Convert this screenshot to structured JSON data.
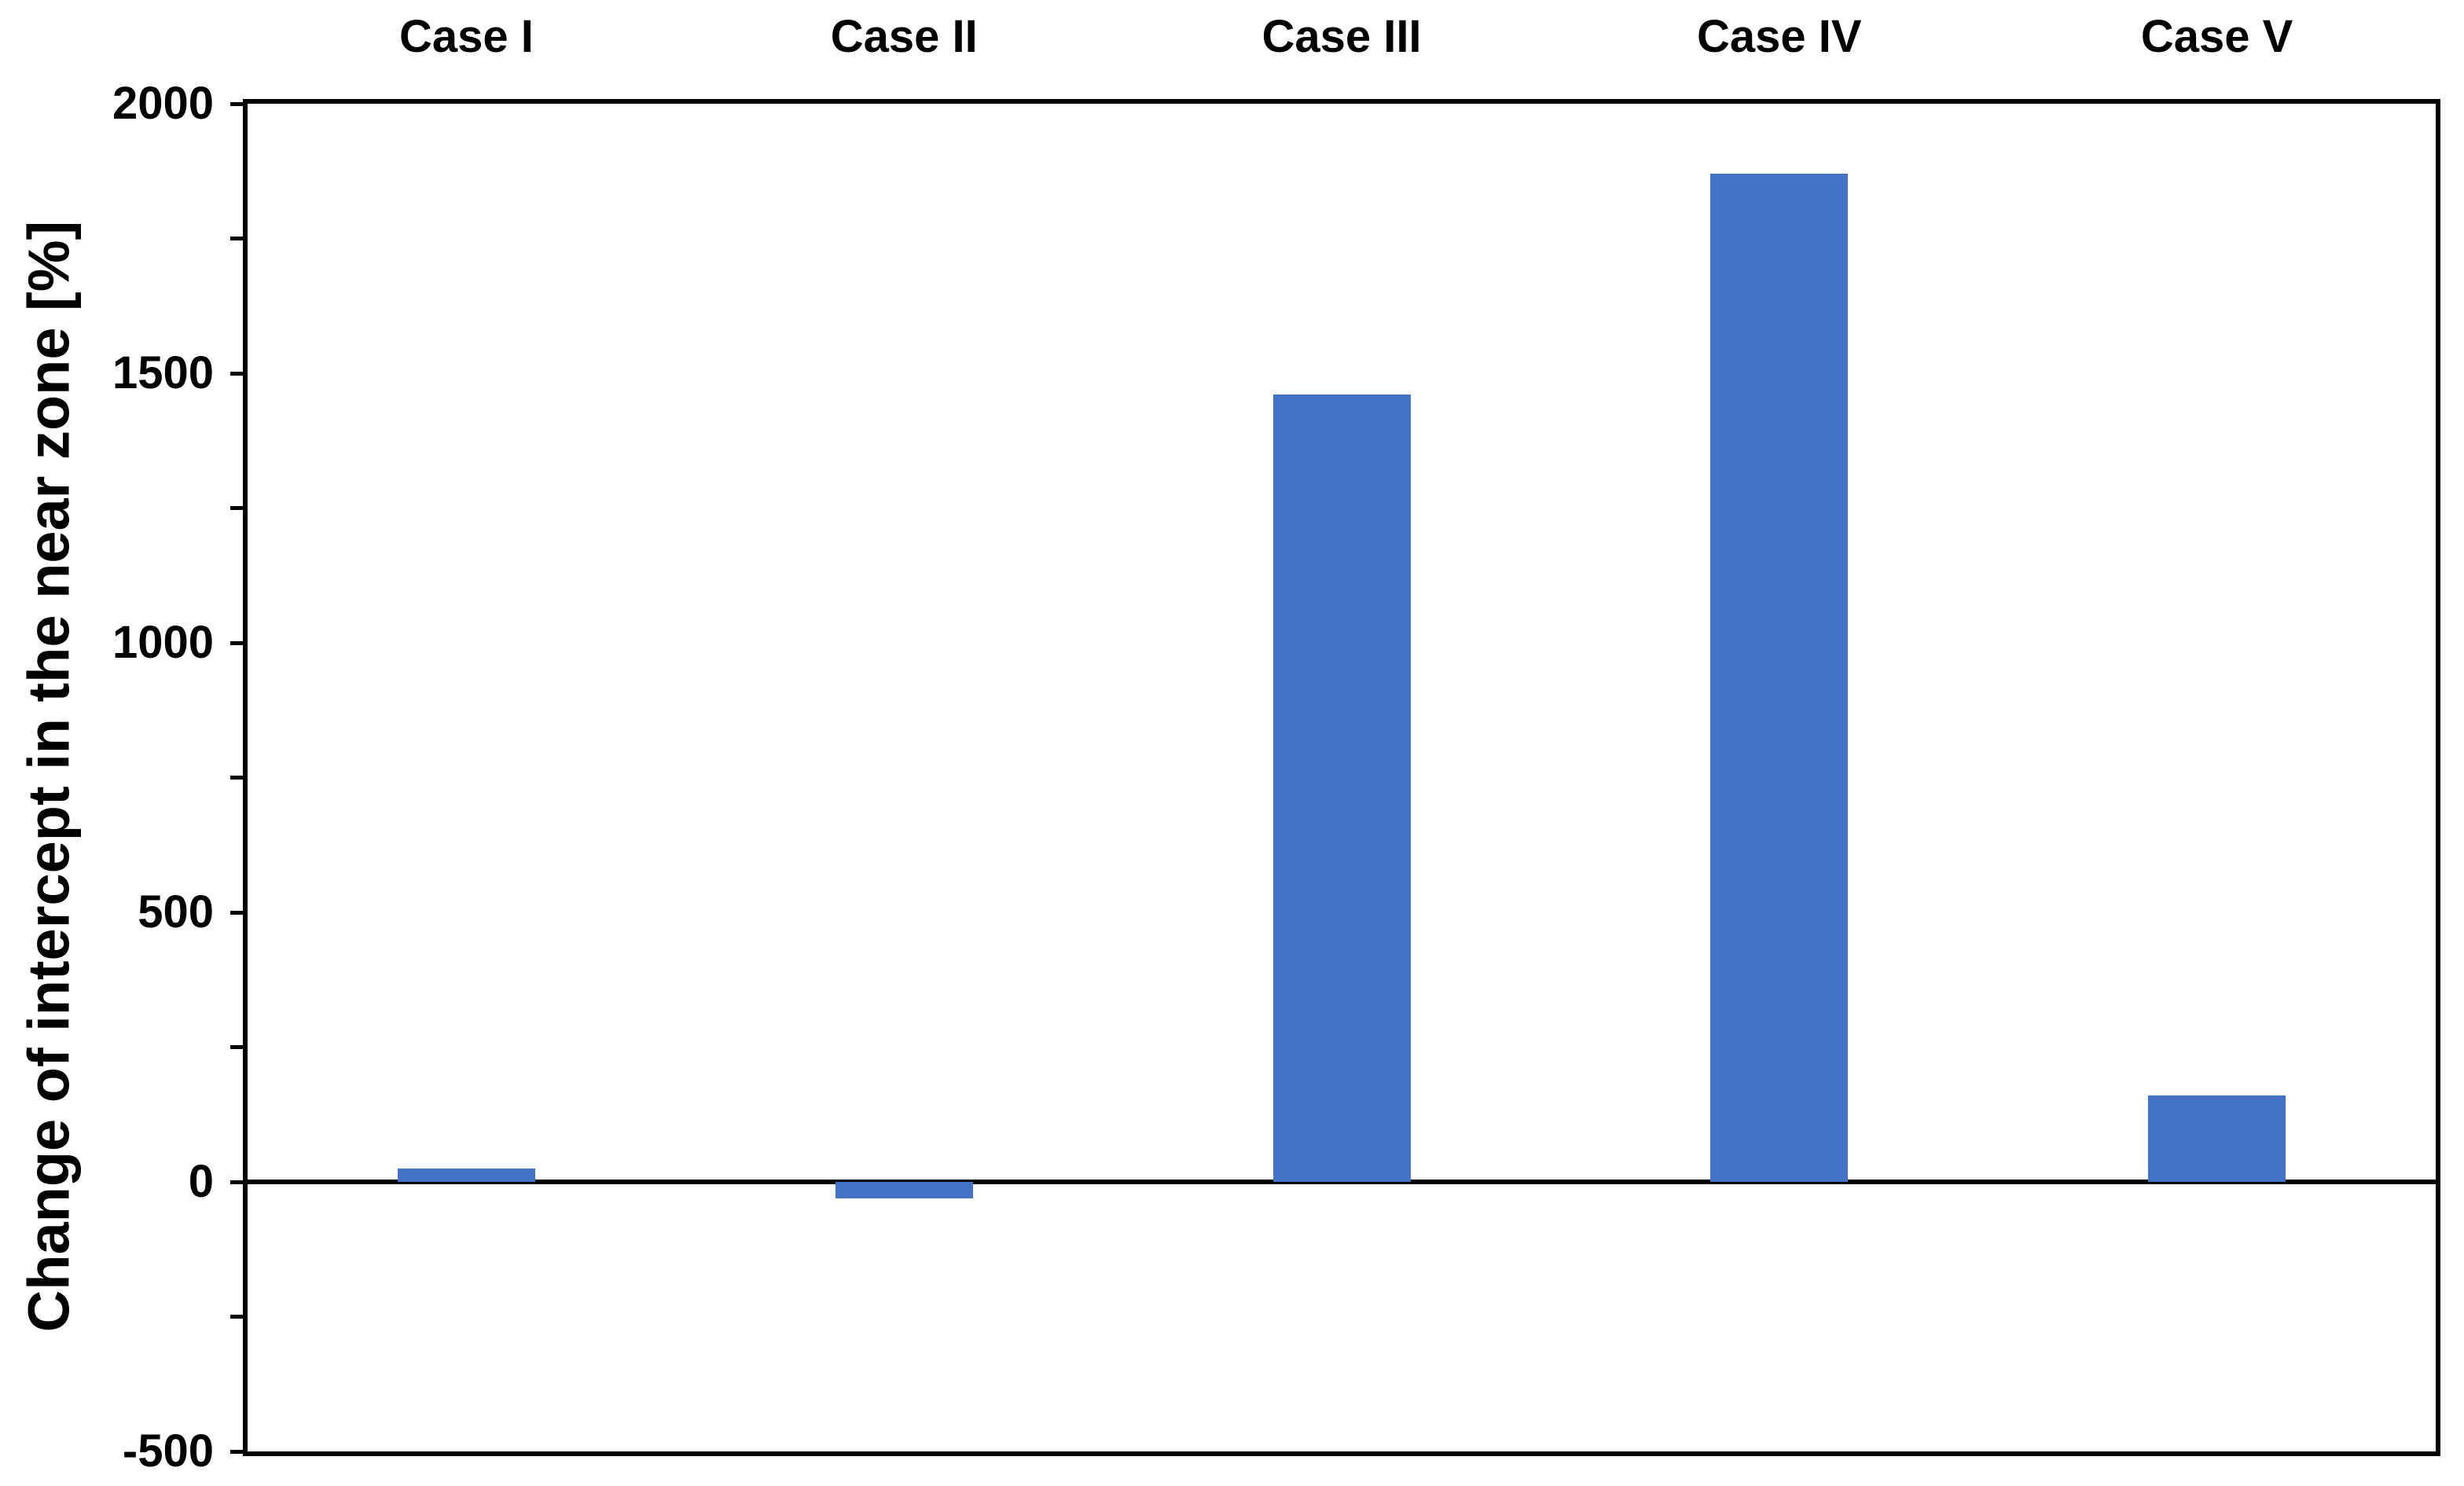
{
  "figure": {
    "background": "#ffffff",
    "text_color": "#000000",
    "axis_color": "#000000"
  },
  "chart_data": {
    "type": "bar",
    "title": "",
    "categories": [
      "Case I",
      "Case II",
      "Case III",
      "Case IV",
      "Case V"
    ],
    "values": [
      25,
      -30,
      1460,
      1870,
      160
    ],
    "bar_color": "#4472C4",
    "xlabel": "",
    "ylabel": "Change of intercept in the near zone [%]",
    "ylim": [
      -500,
      2000
    ],
    "ytick_values": [
      2000,
      1500,
      1000,
      500,
      0,
      -500
    ],
    "ytick_labels": [
      "2000",
      "1500",
      "1000",
      "500",
      "0",
      "-500"
    ],
    "minor_tick_step": 250,
    "grid": false,
    "legend": false,
    "zero_line": true,
    "plot_frame": true,
    "category_label_position": "above-plot"
  }
}
